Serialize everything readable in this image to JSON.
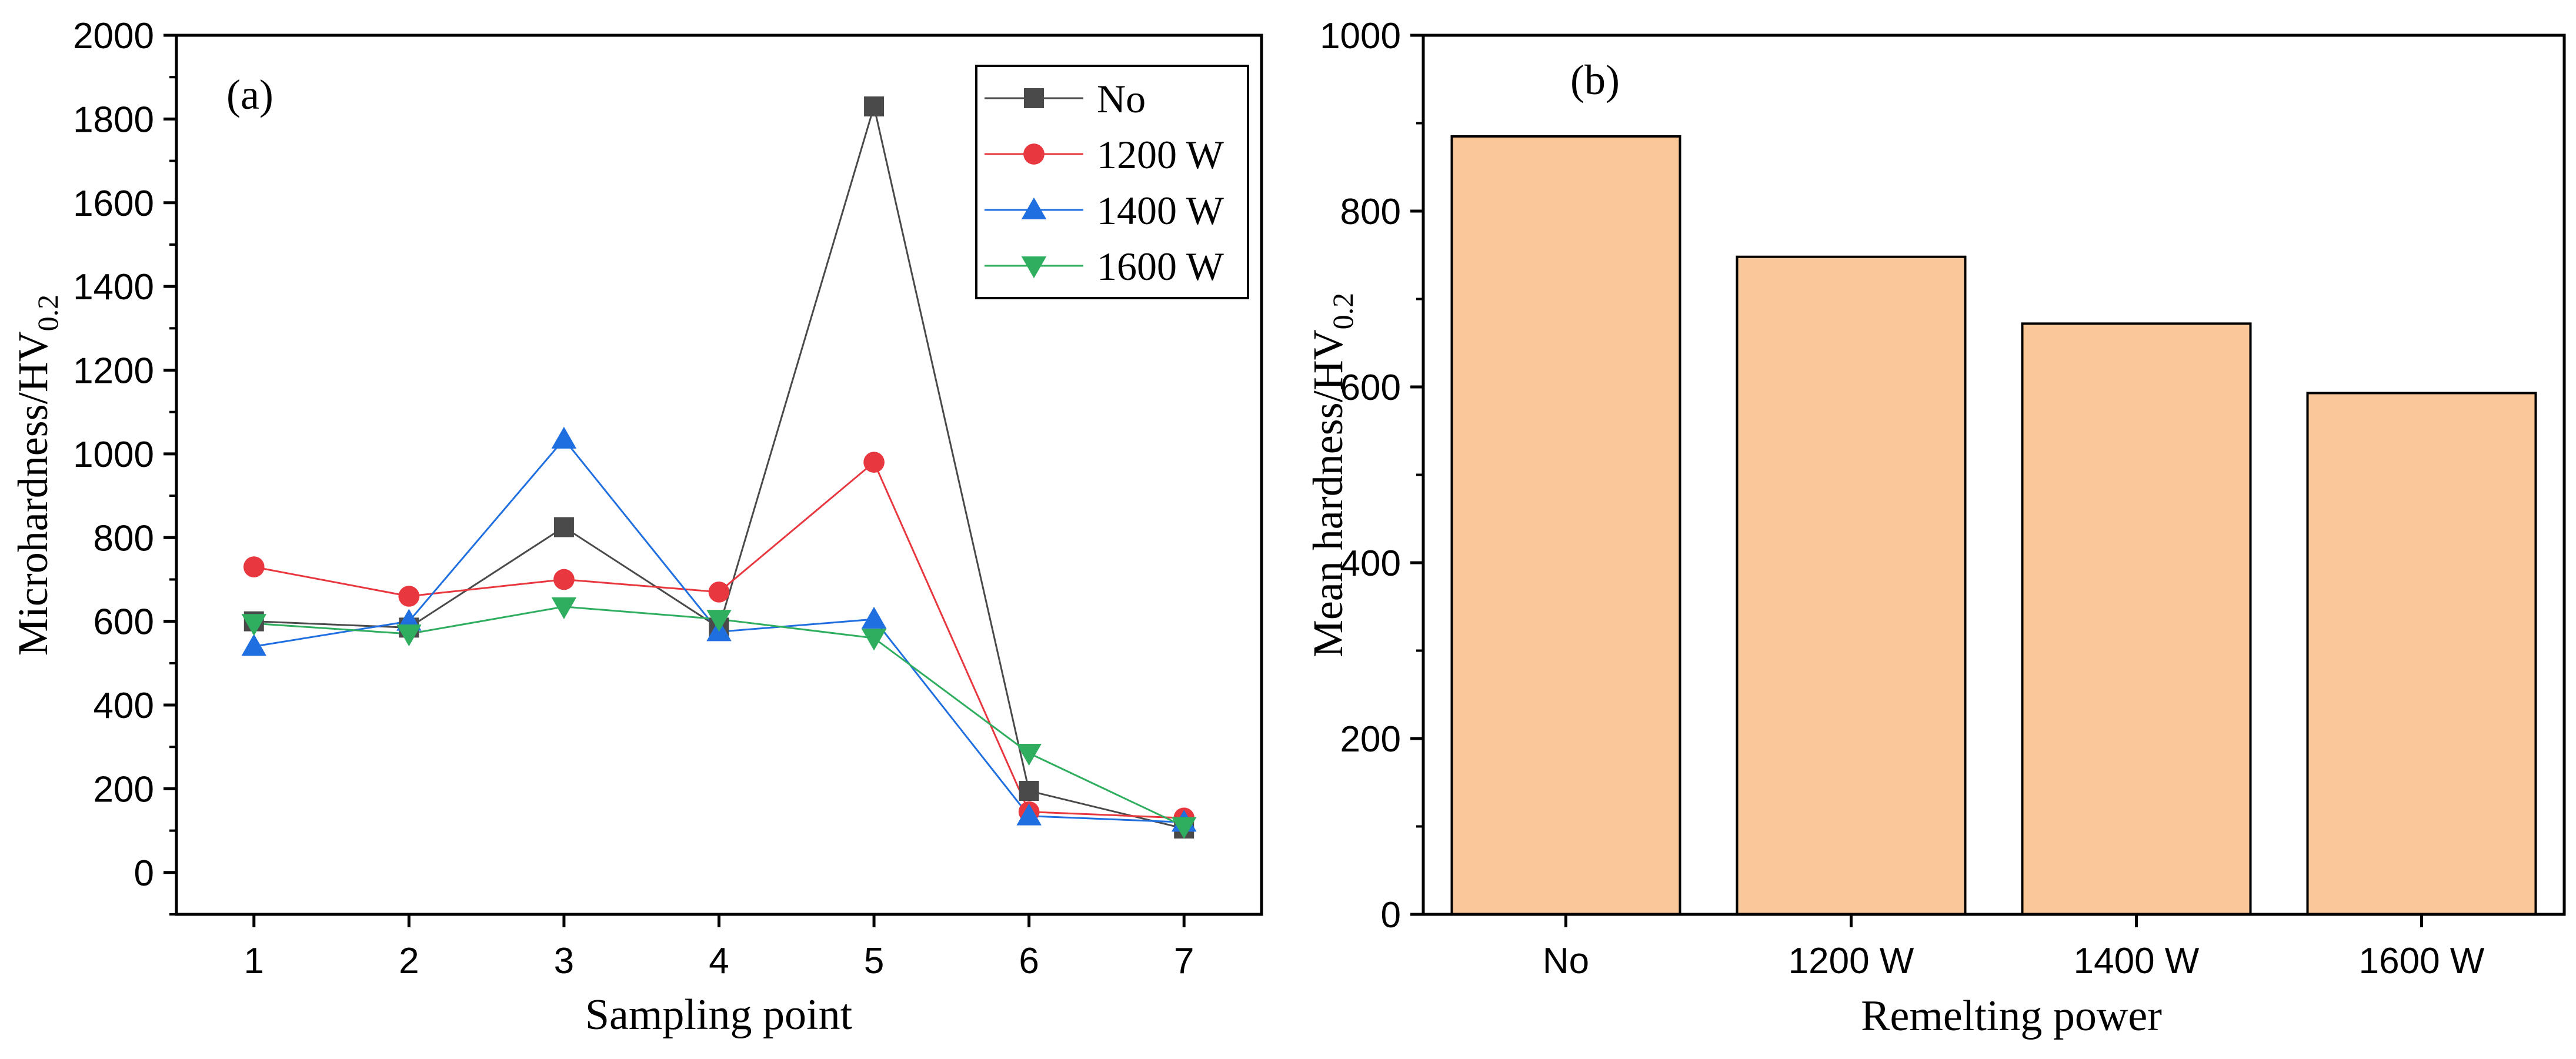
{
  "colors": {
    "no": "#4a4a4a",
    "w1200": "#e8373f",
    "w1400": "#1f6fe0",
    "w1600": "#2fae5f",
    "bar_fill": "#f9c798",
    "axis": "#000000"
  },
  "chart_data": [
    {
      "type": "line",
      "panel_label": "(a)",
      "xlabel": "Sampling point",
      "ylabel_main": "Microhardness/HV",
      "ylabel_sub": "0.2",
      "x": [
        1,
        2,
        3,
        4,
        5,
        6,
        7
      ],
      "x_ticks": [
        "1",
        "2",
        "3",
        "4",
        "5",
        "6",
        "7"
      ],
      "xlim": [
        0.5,
        7.5
      ],
      "ylim": [
        -100,
        2000
      ],
      "y_ticks": [
        "0",
        "200",
        "400",
        "600",
        "800",
        "1000",
        "1200",
        "1400",
        "1600",
        "1800",
        "2000"
      ],
      "series": [
        {
          "name": "No",
          "marker": "square",
          "color_key": "no",
          "values": [
            600,
            585,
            825,
            585,
            1830,
            195,
            105
          ]
        },
        {
          "name": "1200 W",
          "marker": "circle",
          "color_key": "w1200",
          "values": [
            730,
            660,
            700,
            670,
            980,
            145,
            130
          ]
        },
        {
          "name": "1400 W",
          "marker": "triangle-up",
          "color_key": "w1400",
          "values": [
            540,
            600,
            1035,
            575,
            605,
            135,
            120
          ]
        },
        {
          "name": "1600 W",
          "marker": "triangle-down",
          "color_key": "w1600",
          "values": [
            595,
            570,
            635,
            605,
            560,
            285,
            110
          ]
        }
      ],
      "legend_position": "top-right"
    },
    {
      "type": "bar",
      "panel_label": "(b)",
      "xlabel": "Remelting power",
      "ylabel_main": "Mean hardness/HV",
      "ylabel_sub": "0.2",
      "categories": [
        "No",
        "1200 W",
        "1400 W",
        "1600 W"
      ],
      "values": [
        885,
        748,
        672,
        593
      ],
      "ylim": [
        0,
        1000
      ],
      "y_ticks": [
        "0",
        "200",
        "400",
        "600",
        "800",
        "1000"
      ]
    }
  ]
}
